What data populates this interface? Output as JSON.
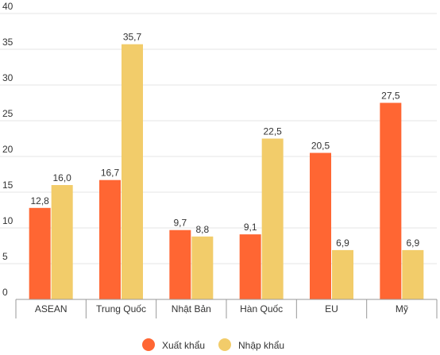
{
  "chart_data": {
    "type": "bar",
    "categories": [
      "ASEAN",
      "Trung Quốc",
      "Nhật Bản",
      "Hàn Quốc",
      "EU",
      "Mỹ"
    ],
    "series": [
      {
        "name": "Xuất khẩu",
        "values": [
          12.8,
          16.7,
          9.7,
          9.1,
          20.5,
          27.5
        ],
        "labels": [
          "12,8",
          "16,7",
          "9,7",
          "9,1",
          "20,5",
          "27,5"
        ]
      },
      {
        "name": "Nhập khẩu",
        "values": [
          16.0,
          35.7,
          8.8,
          22.5,
          6.9,
          6.9
        ],
        "labels": [
          "16,0",
          "35,7",
          "8,8",
          "22,5",
          "6,9",
          "6,9"
        ]
      }
    ],
    "ylim": [
      0,
      40
    ],
    "yticks": [
      "0",
      "5",
      "10",
      "15",
      "20",
      "25",
      "30",
      "35",
      "40"
    ],
    "grid": true,
    "legend_position": "bottom",
    "colors": {
      "series": [
        "#ff6633",
        "#f2cc6a"
      ],
      "grid": "#e6e6e6",
      "axis": "#999999",
      "text": "#333333"
    }
  }
}
